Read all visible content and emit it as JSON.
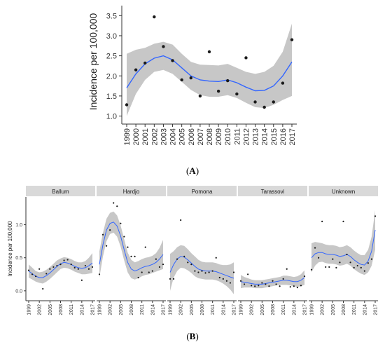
{
  "figure": {
    "label_a": "(A)",
    "label_b": "(B)",
    "label_a_letter": "A",
    "label_b_letter": "B"
  },
  "colors": {
    "point": "#1a1a1a",
    "smooth_line": "#3366ff",
    "ribbon": "#bdbdbd",
    "strip_bg": "#d9d9d9",
    "axis": "#333333"
  },
  "chart_data": [
    {
      "type": "scatter",
      "panel": "A",
      "title": "",
      "xlabel": "",
      "ylabel": "Incidence per 100,000",
      "x": [
        "1999",
        "2000",
        "2001",
        "2002",
        "2003",
        "2004",
        "2005",
        "2006",
        "2007",
        "2008",
        "2009",
        "2010",
        "2011",
        "2012",
        "2013",
        "2014",
        "2015",
        "2016",
        "2017"
      ],
      "values": [
        1.28,
        2.15,
        2.32,
        3.47,
        2.73,
        2.38,
        1.9,
        1.95,
        1.5,
        2.6,
        1.62,
        1.88,
        1.55,
        2.45,
        1.35,
        1.22,
        1.35,
        1.82,
        2.9
      ],
      "smooth": [
        1.7,
        2.05,
        2.3,
        2.44,
        2.5,
        2.4,
        2.2,
        2.0,
        1.9,
        1.87,
        1.86,
        1.9,
        1.83,
        1.72,
        1.63,
        1.64,
        1.75,
        2.0,
        2.35
      ],
      "smooth_lower": [
        1.0,
        1.55,
        1.9,
        2.1,
        2.15,
        2.05,
        1.85,
        1.65,
        1.52,
        1.48,
        1.48,
        1.52,
        1.45,
        1.33,
        1.22,
        1.2,
        1.28,
        1.4,
        1.5
      ],
      "smooth_upper": [
        2.55,
        2.65,
        2.7,
        2.8,
        2.85,
        2.78,
        2.55,
        2.35,
        2.28,
        2.27,
        2.26,
        2.3,
        2.2,
        2.1,
        2.05,
        2.1,
        2.25,
        2.6,
        3.3
      ],
      "ylim": [
        0.8,
        3.75
      ],
      "yticks": [
        "1.0",
        "1.5",
        "2.0",
        "2.5",
        "3.0",
        "3.5"
      ],
      "ytick_values": [
        1.0,
        1.5,
        2.0,
        2.5,
        3.0,
        3.5
      ],
      "grid": false,
      "smoother": "loess with confidence band"
    },
    {
      "type": "scatter",
      "panel": "B",
      "facet": true,
      "ylabel": "Incidence per 100,000",
      "ylim": [
        -0.15,
        1.42
      ],
      "yticks": [
        "0.0",
        "0.5",
        "1.0"
      ],
      "ytick_values": [
        0.0,
        0.5,
        1.0
      ],
      "xticks": [
        "1999",
        "2002",
        "2005",
        "2008",
        "2011",
        "2014",
        "2017"
      ],
      "x": [
        "1999",
        "2000",
        "2001",
        "2002",
        "2003",
        "2004",
        "2005",
        "2006",
        "2007",
        "2008",
        "2009",
        "2010",
        "2011",
        "2012",
        "2013",
        "2014",
        "2015",
        "2016",
        "2017"
      ],
      "grid": false,
      "facets": [
        {
          "name": "Ballum",
          "values": [
            0.31,
            0.25,
            0.22,
            0.33,
            0.03,
            0.26,
            0.33,
            0.36,
            0.38,
            0.4,
            0.46,
            0.47,
            0.4,
            0.35,
            0.33,
            0.16,
            0.38,
            0.33,
            0.36
          ],
          "smooth": [
            0.3,
            0.26,
            0.22,
            0.2,
            0.2,
            0.23,
            0.27,
            0.32,
            0.37,
            0.41,
            0.43,
            0.42,
            0.4,
            0.37,
            0.35,
            0.34,
            0.35,
            0.38,
            0.42
          ],
          "lower": [
            0.2,
            0.17,
            0.14,
            0.12,
            0.11,
            0.14,
            0.18,
            0.23,
            0.28,
            0.33,
            0.35,
            0.34,
            0.32,
            0.29,
            0.27,
            0.25,
            0.25,
            0.26,
            0.27
          ],
          "upper": [
            0.4,
            0.35,
            0.3,
            0.28,
            0.29,
            0.32,
            0.36,
            0.41,
            0.46,
            0.49,
            0.51,
            0.5,
            0.48,
            0.45,
            0.43,
            0.43,
            0.45,
            0.5,
            0.57
          ]
        },
        {
          "name": "Hardjo",
          "values": [
            0.25,
            0.85,
            0.68,
            0.92,
            1.33,
            1.28,
            1.02,
            0.82,
            0.66,
            0.52,
            0.52,
            0.2,
            0.28,
            0.66,
            0.28,
            0.3,
            0.48,
            0.36,
            0.4
          ],
          "smooth": [
            0.4,
            0.7,
            0.92,
            1.02,
            1.04,
            0.98,
            0.83,
            0.62,
            0.43,
            0.33,
            0.3,
            0.32,
            0.35,
            0.37,
            0.38,
            0.4,
            0.43,
            0.48,
            0.55
          ],
          "lower": [
            0.2,
            0.52,
            0.75,
            0.86,
            0.88,
            0.82,
            0.67,
            0.46,
            0.28,
            0.19,
            0.17,
            0.19,
            0.22,
            0.24,
            0.25,
            0.27,
            0.29,
            0.31,
            0.33
          ],
          "upper": [
            0.6,
            0.88,
            1.09,
            1.18,
            1.2,
            1.14,
            0.99,
            0.78,
            0.58,
            0.47,
            0.43,
            0.45,
            0.48,
            0.5,
            0.51,
            0.53,
            0.57,
            0.65,
            0.77
          ]
        },
        {
          "name": "Pomona",
          "values": [
            0.18,
            0.18,
            0.48,
            1.07,
            0.52,
            0.43,
            0.4,
            0.3,
            0.28,
            0.3,
            0.27,
            0.28,
            0.3,
            0.5,
            0.2,
            0.18,
            0.15,
            0.12,
            0.28
          ],
          "smooth": [
            0.28,
            0.4,
            0.48,
            0.52,
            0.51,
            0.47,
            0.42,
            0.37,
            0.33,
            0.31,
            0.3,
            0.3,
            0.3,
            0.29,
            0.27,
            0.25,
            0.23,
            0.21,
            0.19
          ],
          "lower": [
            0.0,
            0.2,
            0.3,
            0.35,
            0.34,
            0.31,
            0.27,
            0.22,
            0.19,
            0.18,
            0.17,
            0.17,
            0.17,
            0.16,
            0.14,
            0.11,
            0.07,
            0.02,
            -0.05
          ],
          "upper": [
            0.56,
            0.6,
            0.66,
            0.69,
            0.68,
            0.63,
            0.57,
            0.52,
            0.47,
            0.44,
            0.43,
            0.43,
            0.43,
            0.42,
            0.4,
            0.39,
            0.39,
            0.4,
            0.43
          ]
        },
        {
          "name": "Tarassovi",
          "values": [
            0.15,
            0.1,
            0.25,
            0.08,
            0.07,
            0.08,
            0.12,
            0.1,
            0.07,
            0.15,
            0.1,
            0.07,
            0.18,
            0.33,
            0.06,
            0.07,
            0.05,
            0.08,
            0.22
          ],
          "smooth": [
            0.14,
            0.13,
            0.12,
            0.11,
            0.1,
            0.1,
            0.1,
            0.11,
            0.12,
            0.13,
            0.14,
            0.15,
            0.16,
            0.16,
            0.15,
            0.14,
            0.14,
            0.16,
            0.2
          ],
          "lower": [
            0.04,
            0.05,
            0.05,
            0.05,
            0.04,
            0.04,
            0.04,
            0.05,
            0.06,
            0.07,
            0.08,
            0.09,
            0.09,
            0.09,
            0.08,
            0.07,
            0.06,
            0.07,
            0.09
          ],
          "upper": [
            0.24,
            0.21,
            0.19,
            0.17,
            0.16,
            0.16,
            0.16,
            0.17,
            0.18,
            0.19,
            0.2,
            0.21,
            0.23,
            0.23,
            0.22,
            0.21,
            0.22,
            0.25,
            0.31
          ]
        },
        {
          "name": "Unknown",
          "values": [
            0.32,
            0.65,
            0.5,
            1.05,
            0.36,
            0.36,
            0.48,
            0.35,
            0.43,
            1.05,
            0.55,
            0.43,
            0.35,
            0.38,
            0.35,
            0.3,
            0.42,
            0.48,
            1.13
          ],
          "smooth": [
            0.5,
            0.56,
            0.58,
            0.58,
            0.56,
            0.55,
            0.55,
            0.54,
            0.52,
            0.53,
            0.55,
            0.52,
            0.47,
            0.43,
            0.4,
            0.39,
            0.45,
            0.6,
            0.92
          ],
          "lower": [
            0.28,
            0.38,
            0.43,
            0.44,
            0.42,
            0.41,
            0.41,
            0.4,
            0.38,
            0.39,
            0.41,
            0.38,
            0.33,
            0.29,
            0.26,
            0.24,
            0.28,
            0.38,
            0.62
          ],
          "upper": [
            0.72,
            0.74,
            0.73,
            0.72,
            0.7,
            0.69,
            0.69,
            0.68,
            0.66,
            0.67,
            0.69,
            0.66,
            0.61,
            0.57,
            0.54,
            0.54,
            0.62,
            0.82,
            1.22
          ]
        }
      ]
    }
  ]
}
